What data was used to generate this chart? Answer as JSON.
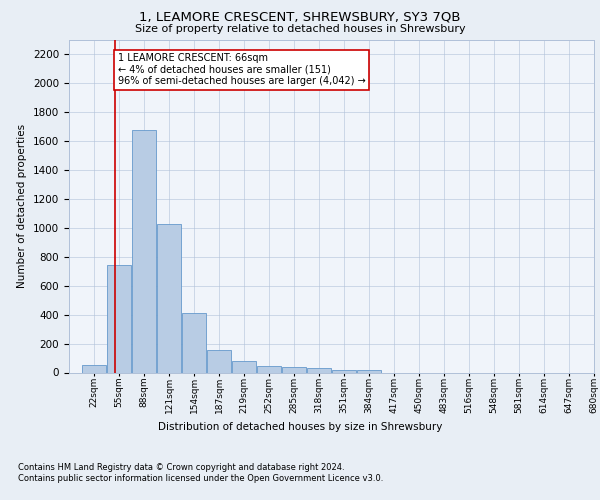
{
  "title1": "1, LEAMORE CRESCENT, SHREWSBURY, SY3 7QB",
  "title2": "Size of property relative to detached houses in Shrewsbury",
  "xlabel": "Distribution of detached houses by size in Shrewsbury",
  "ylabel": "Number of detached properties",
  "bin_labels": [
    "22sqm",
    "55sqm",
    "88sqm",
    "121sqm",
    "154sqm",
    "187sqm",
    "219sqm",
    "252sqm",
    "285sqm",
    "318sqm",
    "351sqm",
    "384sqm",
    "417sqm",
    "450sqm",
    "483sqm",
    "516sqm",
    "548sqm",
    "581sqm",
    "614sqm",
    "647sqm",
    "680sqm"
  ],
  "bar_values": [
    55,
    745,
    1675,
    1030,
    415,
    155,
    80,
    45,
    40,
    28,
    20,
    14,
    0,
    0,
    0,
    0,
    0,
    0,
    0,
    0,
    0
  ],
  "bar_color": "#b8cce4",
  "bar_edge_color": "#6699cc",
  "property_line_x": 66,
  "annotation_text": "1 LEAMORE CRESCENT: 66sqm\n← 4% of detached houses are smaller (151)\n96% of semi-detached houses are larger (4,042) →",
  "annotation_box_color": "#ffffff",
  "annotation_box_edge_color": "#cc0000",
  "vline_color": "#cc0000",
  "ylim": [
    0,
    2300
  ],
  "yticks": [
    0,
    200,
    400,
    600,
    800,
    1000,
    1200,
    1400,
    1600,
    1800,
    2000,
    2200
  ],
  "footnote1": "Contains HM Land Registry data © Crown copyright and database right 2024.",
  "footnote2": "Contains public sector information licensed under the Open Government Licence v3.0.",
  "bg_color": "#e8eef5",
  "plot_bg_color": "#f0f4fa"
}
